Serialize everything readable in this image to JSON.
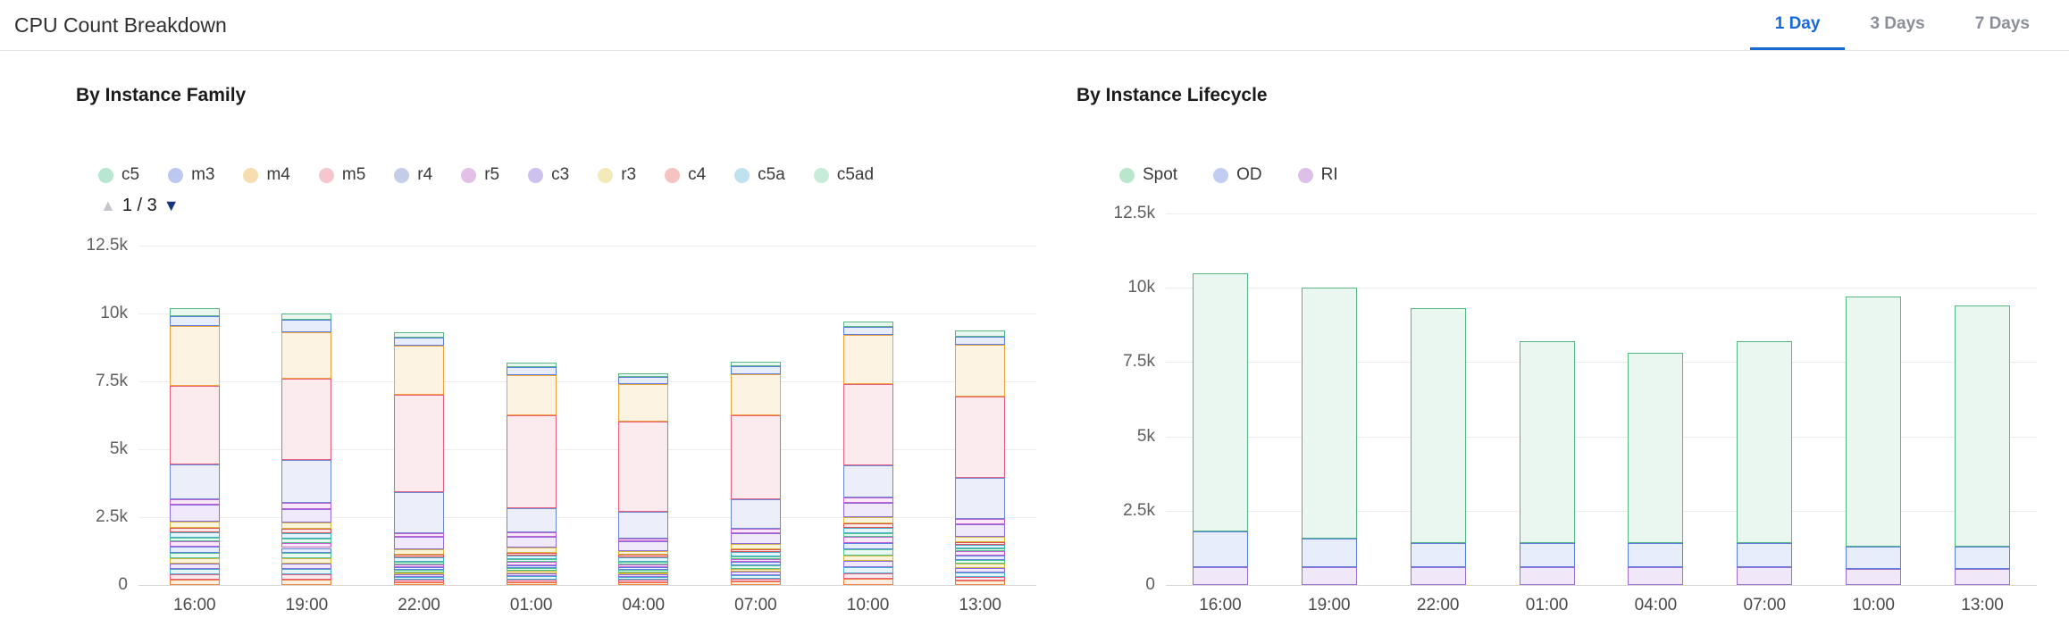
{
  "header": {
    "title": "CPU Count Breakdown",
    "accent_color": "#1769d6",
    "tabs": [
      {
        "label": "1 Day",
        "active": true
      },
      {
        "label": "3 Days",
        "active": false
      },
      {
        "label": "7 Days",
        "active": false
      }
    ]
  },
  "chart_data": [
    {
      "type": "bar",
      "stacked": true,
      "title": "By Instance Family",
      "categories": [
        "16:00",
        "19:00",
        "22:00",
        "01:00",
        "04:00",
        "07:00",
        "10:00",
        "13:00"
      ],
      "ylim": [
        0,
        12500
      ],
      "yticks": {
        "values": [
          0,
          2500,
          5000,
          7500,
          10000,
          12500
        ],
        "labels": [
          "0",
          "2.5k",
          "5k",
          "7.5k",
          "10k",
          "12.5k"
        ]
      },
      "legend_page": "1 / 3",
      "legend": [
        {
          "label": "c5",
          "color": "#b8e6d2"
        },
        {
          "label": "m3",
          "color": "#bcc8f0"
        },
        {
          "label": "m4",
          "color": "#f8ddb0"
        },
        {
          "label": "m5",
          "color": "#f6c6ce"
        },
        {
          "label": "r4",
          "color": "#c4cde8"
        },
        {
          "label": "r5",
          "color": "#e4c0e8"
        },
        {
          "label": "c3",
          "color": "#cdc2ee"
        },
        {
          "label": "r3",
          "color": "#f3e9b9"
        },
        {
          "label": "c4",
          "color": "#f6c3c3"
        },
        {
          "label": "c5a",
          "color": "#bfe2ee"
        },
        {
          "label": "c5ad",
          "color": "#c9ecd9"
        }
      ],
      "series": [
        {
          "name": "",
          "fill": "#fdeee3",
          "stroke": "#f0823c",
          "values": [
            200,
            195,
            95,
            105,
            95,
            120,
            220,
            155
          ]
        },
        {
          "name": "",
          "fill": "#fcebee",
          "stroke": "#e8607c",
          "values": [
            200,
            195,
            95,
            105,
            95,
            120,
            220,
            155
          ]
        },
        {
          "name": "",
          "fill": "#e7f4f9",
          "stroke": "#45aed0",
          "values": [
            200,
            195,
            95,
            105,
            95,
            120,
            220,
            155
          ]
        },
        {
          "name": "",
          "fill": "#efe9fb",
          "stroke": "#8d6be0",
          "values": [
            200,
            195,
            95,
            105,
            95,
            120,
            220,
            155
          ]
        },
        {
          "name": "",
          "fill": "#faf4dc",
          "stroke": "#d4b53c",
          "values": [
            200,
            195,
            95,
            105,
            95,
            120,
            220,
            155
          ]
        },
        {
          "name": "",
          "fill": "#e9f8f0",
          "stroke": "#4fc48f",
          "values": [
            200,
            195,
            95,
            105,
            95,
            120,
            220,
            155
          ]
        },
        {
          "name": "",
          "fill": "#e8edfb",
          "stroke": "#5b7fe0",
          "values": [
            200,
            195,
            95,
            105,
            95,
            120,
            220,
            155
          ]
        },
        {
          "name": "",
          "fill": "#f7e9f9",
          "stroke": "#c45fd0",
          "values": [
            200,
            195,
            95,
            105,
            95,
            120,
            220,
            155
          ]
        },
        {
          "name": "c5ad",
          "fill": "#e9f8f0",
          "stroke": "#4fc48f",
          "values": [
            150,
            150,
            100,
            100,
            100,
            100,
            150,
            100
          ]
        },
        {
          "name": "c5a",
          "fill": "#e7f4f9",
          "stroke": "#45aed0",
          "values": [
            200,
            200,
            150,
            150,
            150,
            150,
            200,
            150
          ]
        },
        {
          "name": "c4",
          "fill": "#fbe9e9",
          "stroke": "#e05252",
          "values": [
            150,
            150,
            100,
            100,
            100,
            100,
            150,
            100
          ]
        },
        {
          "name": "r3",
          "fill": "#faf4dc",
          "stroke": "#d4b53c",
          "values": [
            250,
            250,
            200,
            200,
            150,
            200,
            250,
            200
          ]
        },
        {
          "name": "c3",
          "fill": "#efe9fb",
          "stroke": "#8d6be0",
          "values": [
            600,
            500,
            450,
            400,
            350,
            400,
            500,
            450
          ]
        },
        {
          "name": "r5",
          "fill": "#f7e9f9",
          "stroke": "#c45fd0",
          "values": [
            200,
            200,
            150,
            150,
            100,
            150,
            200,
            200
          ]
        },
        {
          "name": "r4",
          "fill": "#eceffa",
          "stroke": "#6b87d8",
          "values": [
            1300,
            1600,
            1500,
            900,
            1000,
            1100,
            1200,
            1500
          ]
        },
        {
          "name": "m5",
          "fill": "#fcebee",
          "stroke": "#e8607c",
          "values": [
            2900,
            3000,
            3600,
            3400,
            3300,
            3100,
            3000,
            3000
          ]
        },
        {
          "name": "m4",
          "fill": "#fdf3e3",
          "stroke": "#f0a43c",
          "values": [
            2200,
            1700,
            1800,
            1500,
            1400,
            1500,
            1800,
            1900
          ]
        },
        {
          "name": "m3",
          "fill": "#e8edfb",
          "stroke": "#5b7fe0",
          "values": [
            350,
            450,
            300,
            300,
            250,
            300,
            300,
            300
          ]
        },
        {
          "name": "c5",
          "fill": "#eaf7f0",
          "stroke": "#57b884",
          "values": [
            300,
            250,
            200,
            150,
            150,
            150,
            200,
            250
          ]
        }
      ]
    },
    {
      "type": "bar",
      "stacked": true,
      "title": "By Instance Lifecycle",
      "categories": [
        "16:00",
        "19:00",
        "22:00",
        "01:00",
        "04:00",
        "07:00",
        "10:00",
        "13:00"
      ],
      "ylim": [
        0,
        12500
      ],
      "yticks": {
        "values": [
          0,
          2500,
          5000,
          7500,
          10000,
          12500
        ],
        "labels": [
          "0",
          "2.5k",
          "5k",
          "7.5k",
          "10k",
          "12.5k"
        ]
      },
      "legend": [
        {
          "label": "Spot",
          "color": "#b9e7cd"
        },
        {
          "label": "OD",
          "color": "#c3cdf2"
        },
        {
          "label": "RI",
          "color": "#ddc0ea"
        }
      ],
      "series": [
        {
          "name": "RI",
          "fill": "#f0e8f8",
          "stroke": "#9a6fd0",
          "values": [
            600,
            600,
            600,
            600,
            600,
            600,
            550,
            550
          ]
        },
        {
          "name": "OD",
          "fill": "#e8edfb",
          "stroke": "#5b7fe0",
          "values": [
            1200,
            950,
            800,
            800,
            800,
            800,
            750,
            750
          ]
        },
        {
          "name": "Spot",
          "fill": "#eaf7f0",
          "stroke": "#57b884",
          "values": [
            8700,
            8450,
            7900,
            6800,
            6400,
            6800,
            8400,
            8100
          ]
        }
      ]
    }
  ]
}
